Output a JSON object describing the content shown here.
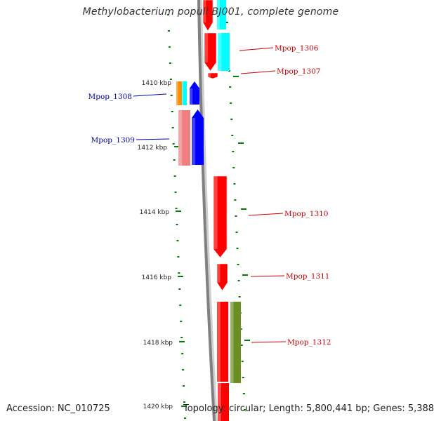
{
  "header": {
    "title": "Methylobacterium populi BJ001, complete genome"
  },
  "footer": {
    "accession": "Accession: NC_010725",
    "topology": "Topology: circular; Length: 5,800,441 bp; Genes: 5,388"
  },
  "colors": {
    "backbone": "#808080",
    "tick": "#008000",
    "forward_gene": "#ff0000",
    "reverse_gene": "#0000ff",
    "rna_like": "#00ffff",
    "orange_feature": "#ff8c00",
    "pink_feature": "#f08080",
    "olive_feature": "#6b8e23",
    "label_forward": "#cc0000",
    "label_reverse": "#0000aa"
  },
  "scale": {
    "tick_labels": [
      "1410 kbp",
      "1412 kbp",
      "1414 kbp",
      "1416 kbp",
      "1418 kbp",
      "1420 kbp"
    ]
  },
  "genes": [
    {
      "label": "Mpop_1306",
      "strand": "forward"
    },
    {
      "label": "Mpop_1307",
      "strand": "forward"
    },
    {
      "label": "Mpop_1308",
      "strand": "reverse"
    },
    {
      "label": "Mpop_1309",
      "strand": "reverse"
    },
    {
      "label": "Mpop_1310",
      "strand": "forward"
    },
    {
      "label": "Mpop_1311",
      "strand": "forward"
    },
    {
      "label": "Mpop_1312",
      "strand": "forward"
    }
  ]
}
